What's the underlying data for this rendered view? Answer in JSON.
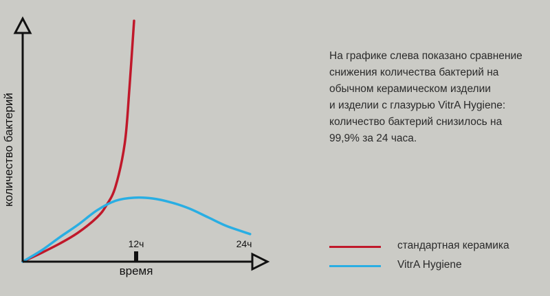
{
  "description": [
    "На графике слева показано сравнение",
    "снижения количества бактерий на",
    "обычном керамическом изделии",
    "и  изделии с глазурью VitrA Hygiene:",
    "количество бактерий снизилось на",
    "99,9% за 24 часа."
  ],
  "chart_data": {
    "type": "line",
    "xlabel": "время",
    "ylabel": "количество бактерий",
    "x_ticks": [
      "12ч",
      "24ч"
    ],
    "grid": false,
    "legend_position": "right",
    "series": [
      {
        "name": "стандартная керамика",
        "color": "#c0182a",
        "x": [
          0,
          2,
          4,
          6,
          8,
          9,
          10,
          11,
          11.5,
          12
        ],
        "y": [
          0,
          11,
          23,
          37,
          56,
          71,
          95,
          150,
          220,
          305
        ]
      },
      {
        "name": "VitrA Hygiene",
        "color": "#29aee3",
        "x": [
          0,
          2,
          4,
          6,
          8,
          10,
          12,
          14,
          16,
          18,
          20,
          22,
          24.5
        ],
        "y": [
          0,
          14,
          31,
          47,
          65,
          77,
          81,
          80,
          75,
          67,
          56,
          45,
          35
        ]
      }
    ]
  }
}
